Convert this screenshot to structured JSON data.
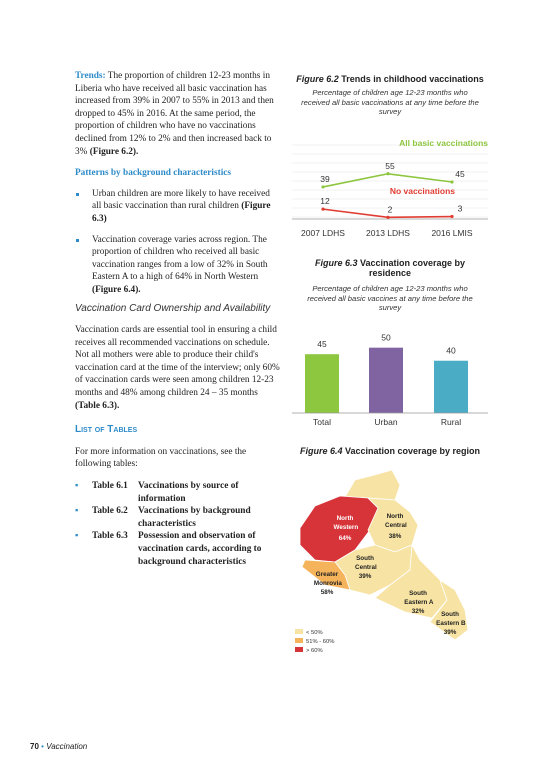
{
  "left": {
    "trends": {
      "lead": "Trends:",
      "text": " The proportion of children 12-23 months in Liberia who have received all basic vaccination has increased from 39% in 2007 to 55% in 2013 and then dropped to 45% in 2016. At the same period, the proportion of children who have no vaccinations declined from 12% to 2% and then increased back to 3% ",
      "ref": "(Figure 6.2)."
    },
    "patterns_heading": "Patterns by background characteristics",
    "bullets": [
      {
        "text": "Urban children are more likely to have received all basic vaccination than rural children ",
        "ref": "(Figure 6.3)"
      },
      {
        "text": "Vaccination coverage varies across region. The proportion of children who received all basic vaccination ranges from a low of 32% in South Eastern A to a high of 64% in North Western ",
        "ref": "(Figure 6.4)."
      }
    ],
    "card_heading": "Vaccination Card Ownership and Availability",
    "card_text": {
      "text": "Vaccination cards are essential tool in ensuring a child receives all recommended vaccinations on schedule. Not all mothers were able to produce their child's vaccination card at the time of the interview; only 60% of vaccination cards were seen among children 12-23 months and 48% among children 24 – 35 months ",
      "ref": "(Table 6.3)."
    },
    "tables_heading": "List of Tables",
    "tables_intro": "For more information on vaccinations, see the following tables:",
    "tables": [
      {
        "id": "Table 6.1",
        "title": "Vaccinations by source of information"
      },
      {
        "id": "Table 6.2",
        "title": "Vaccinations by background characteristics"
      },
      {
        "id": "Table 6.3",
        "title": "Possession and observation of vaccination cards, according to background characteristics"
      }
    ]
  },
  "figures": [
    {
      "label": "Figure 6.2",
      "title": "Trends in childhood vaccinations",
      "subtitle": "Percentage of children age 12-23 months who received all basic vaccinations at any time before the survey",
      "chart": {
        "type": "line",
        "categories": [
          "2007 LDHS",
          "2013 LDHS",
          "2016 LMIS"
        ],
        "ylim": [
          0,
          90
        ],
        "series": [
          {
            "name": "All basic vaccinations",
            "color": "#8dc63f",
            "values": [
              39,
              55,
              45
            ]
          },
          {
            "name": "No vaccinations",
            "color": "#e03c31",
            "values": [
              12,
              2,
              3
            ]
          }
        ]
      }
    },
    {
      "label": "Figure 6.3",
      "title": "Vaccination coverage by residence",
      "subtitle": "Percentage of children age 12-23 months who received all basic vaccines at any time before the survey",
      "chart": {
        "type": "bar",
        "categories": [
          "Total",
          "Urban",
          "Rural"
        ],
        "values": [
          45,
          50,
          40
        ],
        "colors": [
          "#8dc63f",
          "#8064a2",
          "#4bacc6"
        ],
        "ylim": [
          0,
          60
        ]
      }
    },
    {
      "label": "Figure 6.4",
      "title": "Vaccination coverage by region",
      "map": {
        "regions": [
          {
            "name": "North Western",
            "value": 64,
            "label": "64%",
            "color": "#d7343a"
          },
          {
            "name": "North Central",
            "value": 38,
            "label": "38%",
            "color": "#f7e3a3"
          },
          {
            "name": "South Central",
            "value": 39,
            "label": "39%",
            "color": "#f7e3a3"
          },
          {
            "name": "Greater Monrovia",
            "value": 58,
            "label": "58%",
            "color": "#f5b35c"
          },
          {
            "name": "South Eastern A",
            "value": 32,
            "label": "32%",
            "color": "#f7e3a3"
          },
          {
            "name": "South Eastern B",
            "value": 39,
            "label": "39%",
            "color": "#f7e3a3"
          }
        ],
        "legend": [
          {
            "label": "< 50%",
            "color": "#f7e3a3"
          },
          {
            "label": "51% - 60%",
            "color": "#f5b35c"
          },
          {
            "label": "> 60%",
            "color": "#d7343a"
          }
        ]
      }
    }
  ],
  "footer": {
    "page_number": "70",
    "section": "Vaccination"
  }
}
